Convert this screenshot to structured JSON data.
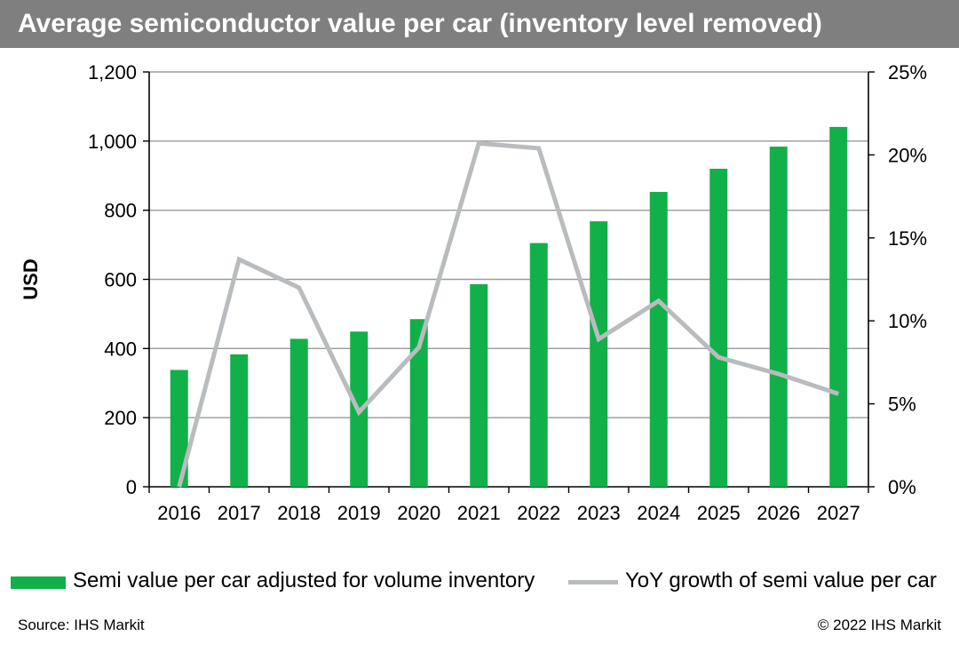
{
  "header": {
    "title": "Average semiconductor value per car (inventory level removed)"
  },
  "colors": {
    "bar": "#12b049",
    "line": "#b9bcbe",
    "grid": "#9a9a9a",
    "title_bg": "#7f7f7f"
  },
  "chart_data": {
    "type": "bar",
    "title": "Average semiconductor value per car (inventory level removed)",
    "xlabel": "",
    "ylabel": "USD",
    "categories": [
      "2016",
      "2017",
      "2018",
      "2019",
      "2020",
      "2021",
      "2022",
      "2023",
      "2024",
      "2025",
      "2026",
      "2027"
    ],
    "ylim": [
      0,
      1200
    ],
    "y_ticks": [
      0,
      200,
      400,
      600,
      800,
      1000,
      1200
    ],
    "y_tick_labels": [
      "0",
      "200",
      "400",
      "600",
      "800",
      "1,000",
      "1,200"
    ],
    "y2lim": [
      0,
      25
    ],
    "y2_ticks": [
      0,
      5,
      10,
      15,
      20,
      25
    ],
    "y2_tick_labels": [
      "0%",
      "5%",
      "10%",
      "15%",
      "20%",
      "25%"
    ],
    "grid": true,
    "series": [
      {
        "name": "Semi value per car adjusted for volume inventory",
        "type": "bar",
        "axis": "left",
        "values": [
          338,
          383,
          428,
          449,
          485,
          586,
          705,
          768,
          853,
          920,
          984,
          1041
        ]
      },
      {
        "name": "YoY growth of semi value per car",
        "type": "line",
        "axis": "right",
        "values": [
          0.0,
          13.7,
          12.0,
          4.5,
          8.4,
          20.7,
          20.4,
          8.9,
          11.2,
          7.8,
          6.8,
          5.6
        ]
      }
    ]
  },
  "footer": {
    "source": "Source: IHS Markit",
    "copyright": "© 2022 IHS Markit"
  }
}
